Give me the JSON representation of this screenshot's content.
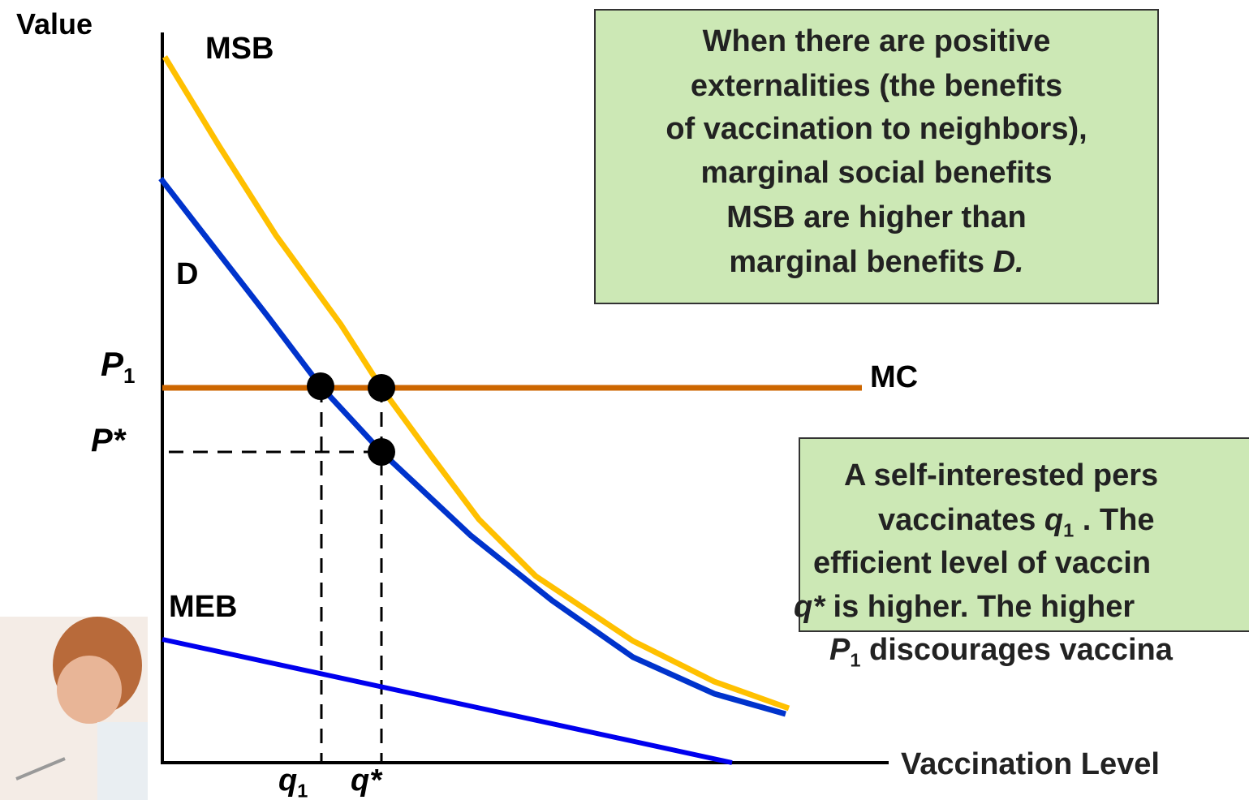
{
  "axes": {
    "y_label": "Value",
    "x_label": "Vaccination Level"
  },
  "curve_labels": {
    "msb": "MSB",
    "demand": "D",
    "mc": "MC",
    "meb": "MEB"
  },
  "price_labels": {
    "p1": [
      {
        "text": "P",
        "style": "italic"
      },
      {
        "text": "1",
        "style": "sub"
      }
    ],
    "p_star": [
      {
        "text": "P*",
        "style": "italic"
      }
    ]
  },
  "quantity_labels": {
    "q1": [
      {
        "text": "q",
        "style": "italic"
      },
      {
        "text": "1",
        "style": "sub"
      }
    ],
    "q_star": [
      {
        "text": "q*",
        "style": "italic"
      }
    ]
  },
  "note_top": {
    "lines": [
      [
        {
          "text": "When there are positive"
        }
      ],
      [
        {
          "text": "externalities (the benefits"
        }
      ],
      [
        {
          "text": "of vaccination to neighbors),"
        }
      ],
      [
        {
          "text": "marginal social benefits"
        }
      ],
      [
        {
          "text": "MSB are higher than"
        }
      ],
      [
        {
          "text": "marginal benefits "
        },
        {
          "text": "D.",
          "style": "italic"
        }
      ]
    ]
  },
  "note_bottom": {
    "lines": [
      [
        {
          "text": "A self-interested pers"
        }
      ],
      [
        {
          "text": "vaccinates "
        },
        {
          "text": "q",
          "style": "italic"
        },
        {
          "text": "1",
          "style": "sub"
        },
        {
          "text": " .  The"
        }
      ],
      [
        {
          "text": "efficient level of vaccin"
        }
      ],
      [
        {
          "text": "q*",
          "style": "italic"
        },
        {
          "text": " is higher.  The higher"
        }
      ],
      [
        {
          "text": "P",
          "style": "italic"
        },
        {
          "text": "1",
          "style": "sub"
        },
        {
          "text": " discourages vaccina"
        }
      ]
    ]
  }
}
